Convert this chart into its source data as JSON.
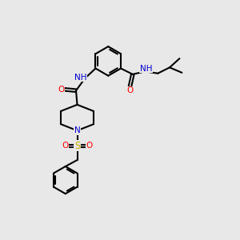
{
  "bg_color": "#e8e8e8",
  "bond_color": "#000000",
  "bond_width": 1.5,
  "atom_colors": {
    "N": "#0000cd",
    "O": "#ff0000",
    "S": "#ccaa00",
    "H": "#008080"
  },
  "font_size": 7.5
}
